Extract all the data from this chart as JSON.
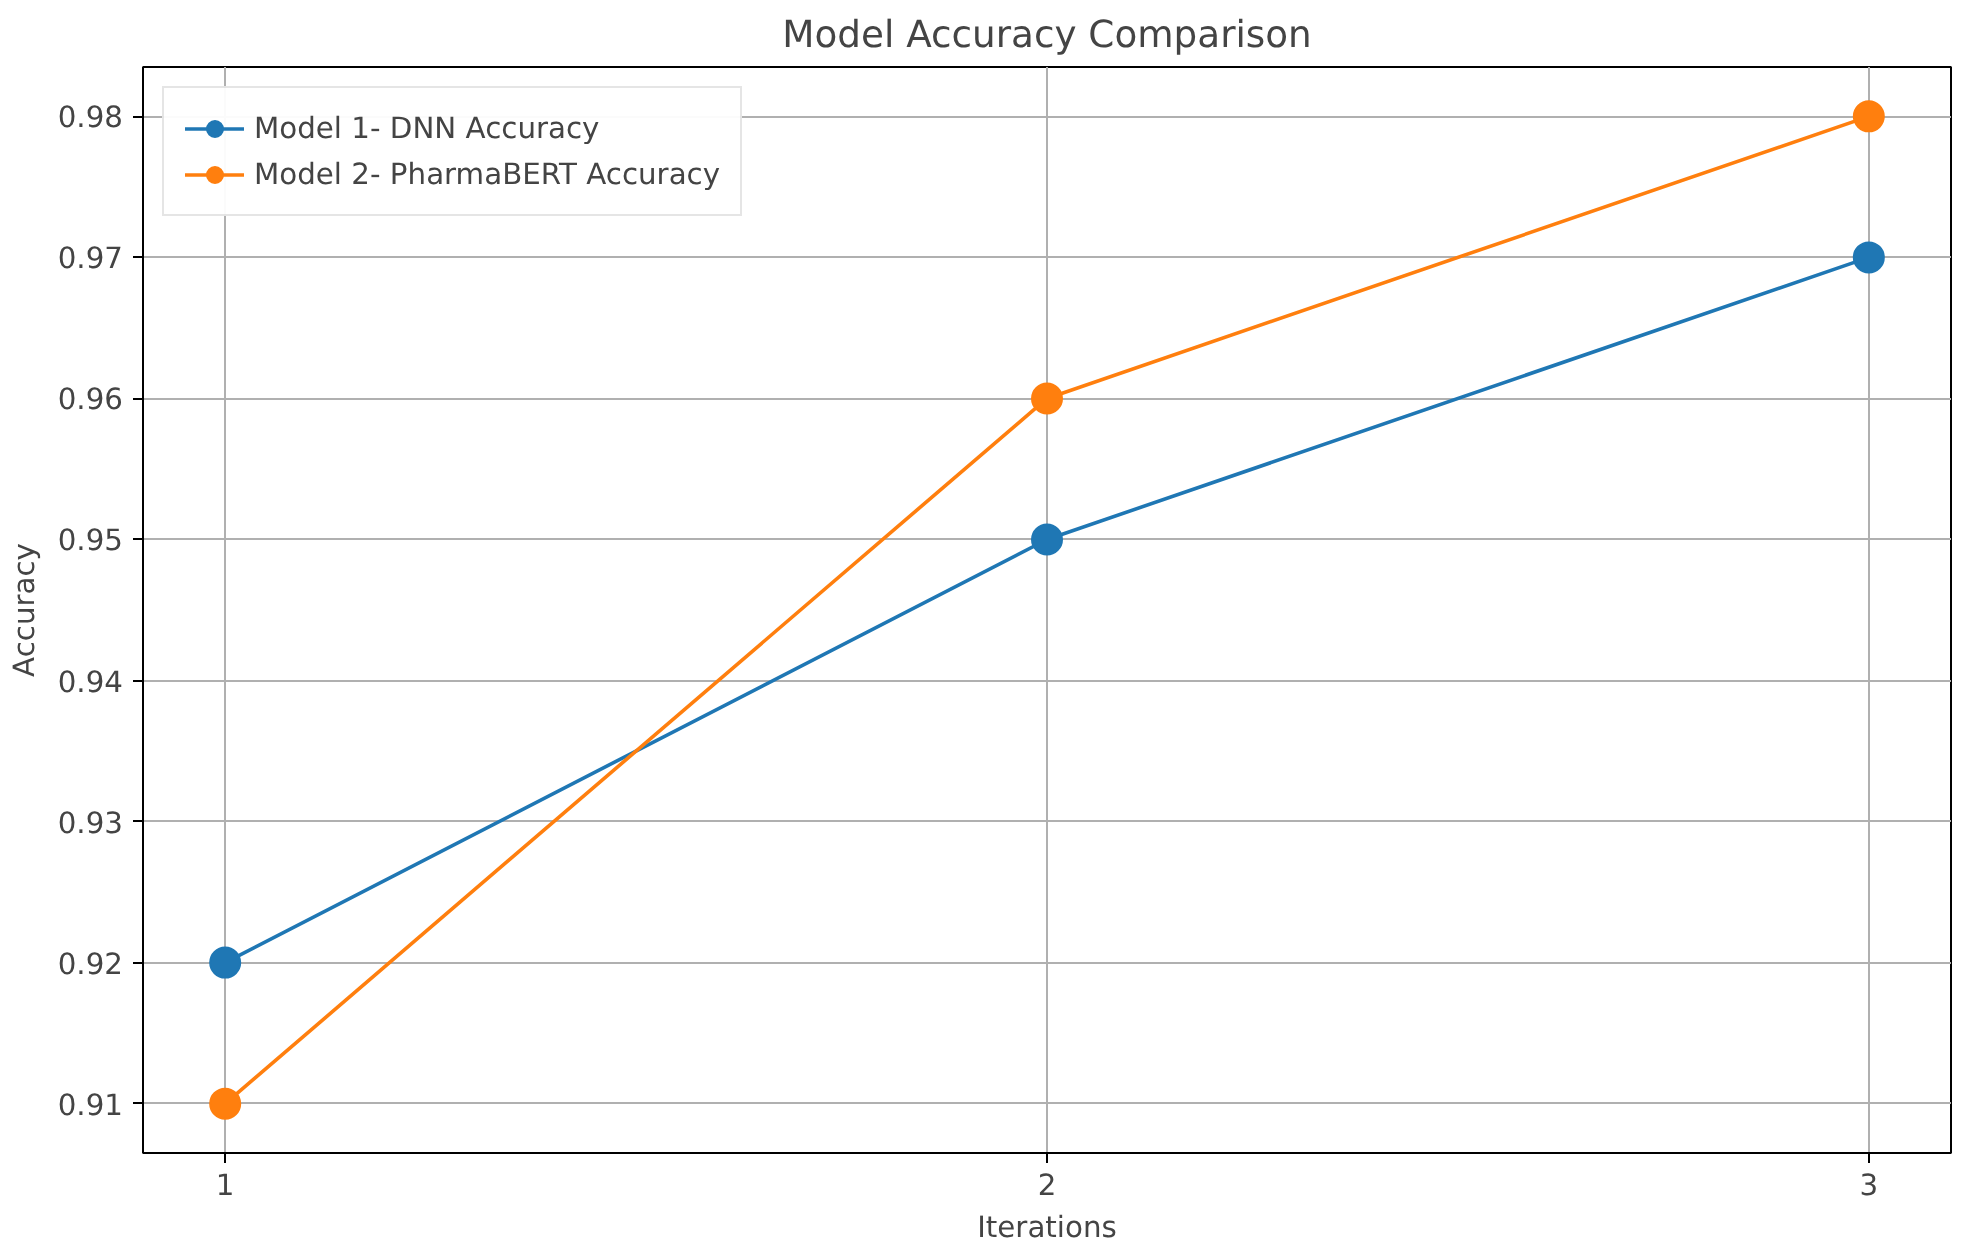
{
  "chart_data": {
    "type": "line",
    "title": "Model Accuracy Comparison",
    "xlabel": "Iterations",
    "ylabel": "Accuracy",
    "x": [
      1,
      2,
      3
    ],
    "series": [
      {
        "name": "Model 1- DNN Accuracy",
        "color": "#1f77b4",
        "values": [
          0.92,
          0.95,
          0.97
        ]
      },
      {
        "name": "Model 2- PharmaBERT Accuracy",
        "color": "#ff7f0e",
        "values": [
          0.91,
          0.96,
          0.98
        ]
      }
    ],
    "xlim": [
      0.9,
      3.1
    ],
    "xticks": [
      1,
      2,
      3
    ],
    "ylim": [
      0.9065,
      0.9835
    ],
    "yticks": [
      {
        "value": 0.91,
        "label": "0.91"
      },
      {
        "value": 0.92,
        "label": "0.92"
      },
      {
        "value": 0.93,
        "label": "0.93"
      },
      {
        "value": 0.94,
        "label": "0.94"
      },
      {
        "value": 0.95,
        "label": "0.95"
      },
      {
        "value": 0.96,
        "label": "0.96"
      },
      {
        "value": 0.97,
        "label": "0.97"
      },
      {
        "value": 0.98,
        "label": "0.98"
      }
    ],
    "grid": true,
    "legend": "top left",
    "marker": "circle",
    "line_style": "solid"
  }
}
